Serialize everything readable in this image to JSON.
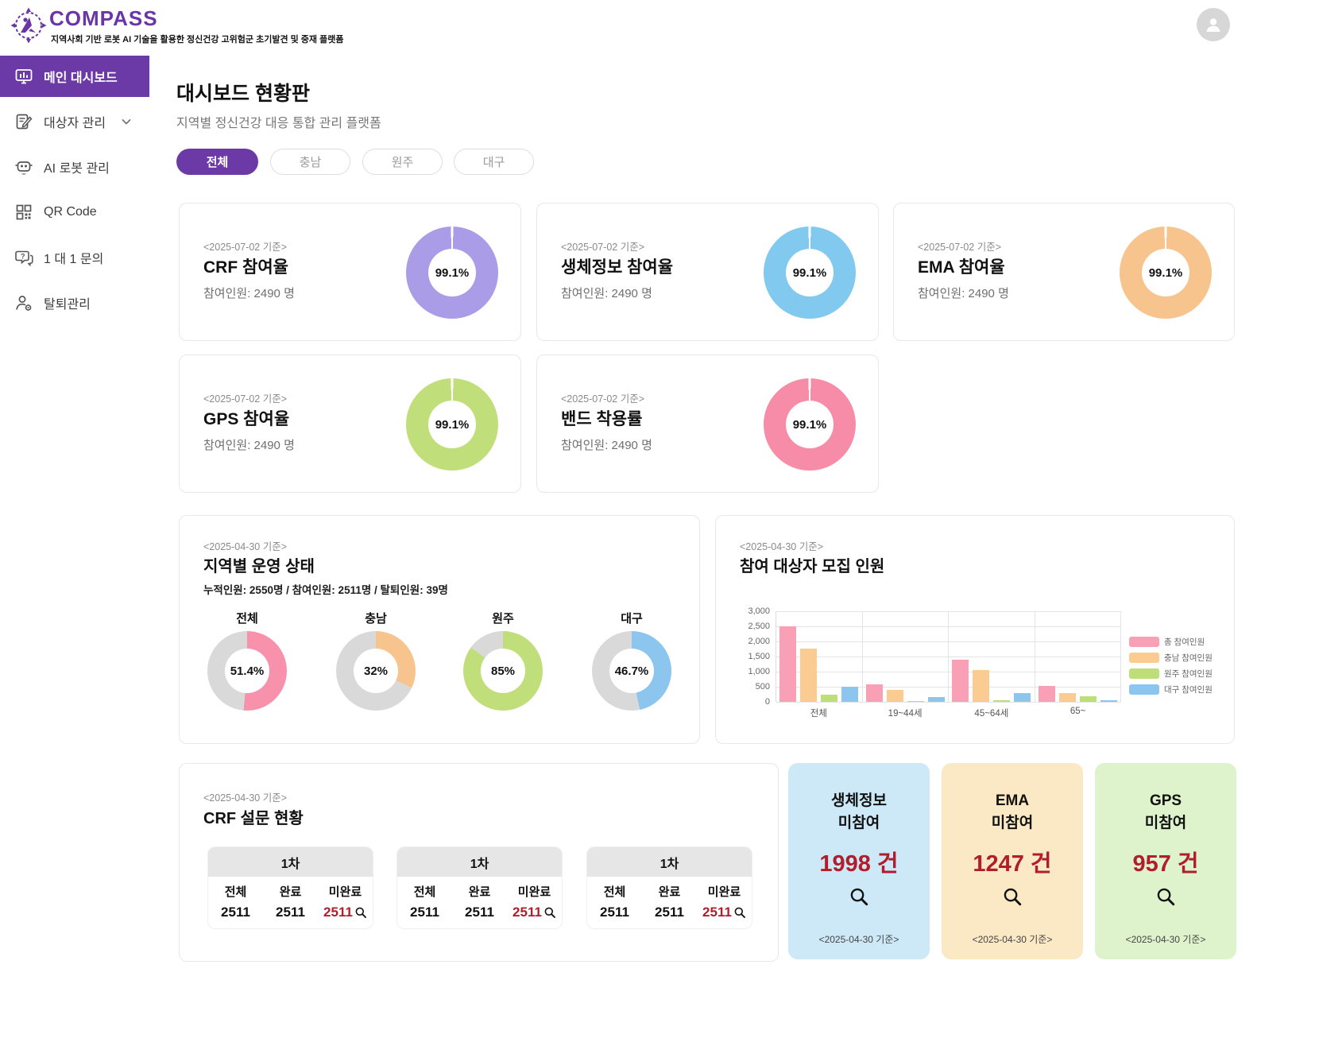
{
  "header": {
    "logo_text": "COMPASS",
    "logo_subtitle": "지역사회 기반 로봇 AI 기술을 활용한 정신건강 고위험군 초기발견 및 중재 플랫폼"
  },
  "brand_color": "#6b3aa6",
  "sidebar": {
    "items": [
      {
        "label": "메인 대시보드"
      },
      {
        "label": "대상자 관리"
      },
      {
        "label": "AI 로봇 관리"
      },
      {
        "label": "QR Code"
      },
      {
        "label": "1 대 1 문의"
      },
      {
        "label": "탈퇴관리"
      }
    ]
  },
  "main": {
    "title": "대시보드 현황판",
    "subtitle": "지역별 정신건강 대응 통합 관리 플랫폼",
    "tabs": [
      {
        "label": "전체",
        "active": true
      },
      {
        "label": "충남",
        "active": false
      },
      {
        "label": "원주",
        "active": false
      },
      {
        "label": "대구",
        "active": false
      }
    ]
  },
  "stat_cards": [
    {
      "date": "<2025-07-02 기준>",
      "title": "CRF 참여율",
      "participants": "참여인원: 2490 명",
      "donut": {
        "value": 99.1,
        "label": "99.1%",
        "color": "#ab9ce8",
        "track": "#ffffff",
        "start": 1.6
      }
    },
    {
      "date": "<2025-07-02 기준>",
      "title": "생체정보 참여율",
      "participants": "참여인원: 2490 명",
      "donut": {
        "value": 99.1,
        "label": "99.1%",
        "color": "#82c9f0",
        "track": "#ffffff",
        "start": 1.6
      }
    },
    {
      "date": "<2025-07-02 기준>",
      "title": "EMA 참여율",
      "participants": "참여인원: 2490 명",
      "donut": {
        "value": 99.1,
        "label": "99.1%",
        "color": "#f7c48d",
        "track": "#ffffff",
        "start": 1.6
      }
    },
    {
      "date": "<2025-07-02 기준>",
      "title": "GPS 참여율",
      "participants": "참여인원: 2490 명",
      "donut": {
        "value": 99.1,
        "label": "99.1%",
        "color": "#c0df7b",
        "track": "#ffffff",
        "start": 1.6
      }
    },
    {
      "date": "<2025-07-02 기준>",
      "title": "밴드 착용률",
      "participants": "참여인원: 2490 명",
      "donut": {
        "value": 99.1,
        "label": "99.1%",
        "color": "#f78ca8",
        "track": "#ffffff",
        "start": 1.6
      }
    }
  ],
  "regional": {
    "date": "<2025-04-30 기준>",
    "title": "지역별 운영 상태",
    "summary": "누적인원: 2550명 / 참여인원: 2511명 / 탈퇴인원: 39명",
    "donuts": [
      {
        "name": "전체",
        "donut": {
          "value": 51.4,
          "label": "51.4%",
          "color": "#f892ac",
          "track": "#d9d9d9",
          "start": 0
        }
      },
      {
        "name": "충남",
        "donut": {
          "value": 32,
          "label": "32%",
          "color": "#f7c48d",
          "track": "#d9d9d9",
          "start": 0
        }
      },
      {
        "name": "원주",
        "donut": {
          "value": 85,
          "label": "85%",
          "color": "#c0df7b",
          "track": "#d9d9d9",
          "start": 0
        }
      },
      {
        "name": "대구",
        "donut": {
          "value": 46.7,
          "label": "46.7%",
          "color": "#8cc5ee",
          "track": "#d9d9d9",
          "start": 0
        }
      }
    ]
  },
  "chart_data": {
    "type": "bar",
    "title": "참여 대상자 모집 인원",
    "date": "<2025-04-30 기준>",
    "categories": [
      "전체",
      "19~44세",
      "45~64세",
      "65~"
    ],
    "series": [
      {
        "name": "총 참여인원",
        "color": "#f9a0b6",
        "values": [
          2511,
          575,
          1400,
          515
        ]
      },
      {
        "name": "충남 참여인원",
        "color": "#fbcc92",
        "values": [
          1761,
          400,
          1055,
          290
        ]
      },
      {
        "name": "원주 참여인원",
        "color": "#bede77",
        "values": [
          245,
          10,
          50,
          180
        ]
      },
      {
        "name": "대구 참여인원",
        "color": "#8cc5ee",
        "values": [
          495,
          155,
          295,
          45
        ]
      }
    ],
    "yticks": [
      "3,000",
      "2,500",
      "2,000",
      "1,500",
      "1,000",
      "500",
      "0"
    ],
    "ylim": [
      0,
      3000
    ],
    "grid": true,
    "legend_position": "right"
  },
  "crf": {
    "date": "<2025-04-30 기준>",
    "title": "CRF 설문 현황",
    "tables": [
      {
        "round": "1차",
        "col1": "전체",
        "col2": "완료",
        "col3": "미완료",
        "val1": "2511",
        "val2": "2511",
        "val3": "2511"
      },
      {
        "round": "1차",
        "col1": "전체",
        "col2": "완료",
        "col3": "미완료",
        "val1": "2511",
        "val2": "2511",
        "val3": "2511"
      },
      {
        "round": "1차",
        "col1": "전체",
        "col2": "완료",
        "col3": "미완료",
        "val1": "2511",
        "val2": "2511",
        "val3": "2511"
      }
    ]
  },
  "mini_cards": [
    {
      "title_line1": "생체정보",
      "title_line2": "미참여",
      "count": "1998 건",
      "date": "<2025-04-30 기준>",
      "bg": "#cde9f7"
    },
    {
      "title_line1": "EMA",
      "title_line2": "미참여",
      "count": "1247 건",
      "date": "<2025-04-30 기준>",
      "bg": "#fbe8c4"
    },
    {
      "title_line1": "GPS",
      "title_line2": "미참여",
      "count": "957 건",
      "date": "<2025-04-30 기준>",
      "bg": "#def3cc"
    }
  ]
}
